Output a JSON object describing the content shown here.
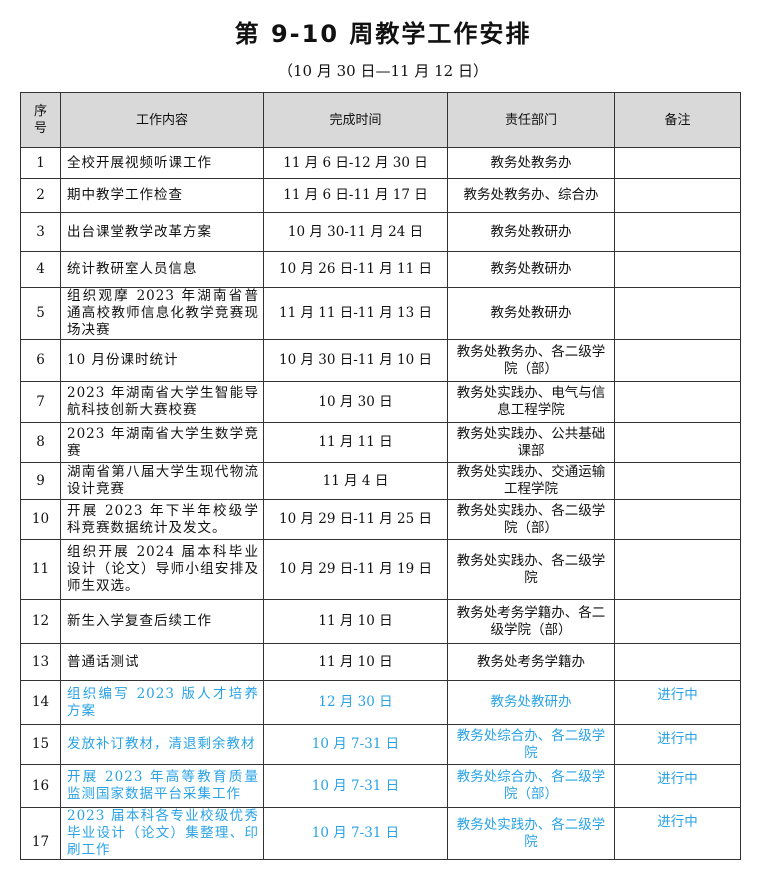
{
  "title": "第 9-10 周教学工作安排",
  "subtitle": "（10 月 30 日—11 月 12 日）",
  "accent_color": "#29a3e6",
  "headers": [
    "序号",
    "工作内容",
    "完成时间",
    "责任部门",
    "备注"
  ],
  "rows": [
    {
      "no": "1",
      "content": "全校开展视频听课工作",
      "time": "11 月 6 日-12 月 30 日",
      "dept": "教务处教务办",
      "note": ""
    },
    {
      "no": "2",
      "content": "期中教学工作检查",
      "time": "11 月 6 日-11 月 17 日",
      "dept": "教务处教务办、综合办",
      "note": ""
    },
    {
      "no": "3",
      "content": "出台课堂教学改革方案",
      "time": "10 月 30-11 月 24 日",
      "dept": "教务处教研办",
      "note": ""
    },
    {
      "no": "4",
      "content": "统计教研室人员信息",
      "time": "10 月 26 日-11 月 11 日",
      "dept": "教务处教研办",
      "note": ""
    },
    {
      "no": "5",
      "content": "组织观摩 2023 年湖南省普通高校教师信息化教学竞赛现场决赛",
      "time": "11 月 11 日-11 月 13 日",
      "dept": "教务处教研办",
      "note": ""
    },
    {
      "no": "6",
      "content": "10 月份课时统计",
      "time": "10 月 30 日-11 月 10 日",
      "dept": "教务处教务办、各二级学院（部）",
      "note": ""
    },
    {
      "no": "7",
      "content": "2023 年湖南省大学生智能导航科技创新大赛校赛",
      "time": "10 月 30 日",
      "dept": "教务处实践办、电气与信息工程学院",
      "note": ""
    },
    {
      "no": "8",
      "content": "2023 年湖南省大学生数学竞赛",
      "time": "11 月 11 日",
      "dept": "教务处实践办、公共基础课部",
      "note": ""
    },
    {
      "no": "9",
      "content": "湖南省第八届大学生现代物流设计竞赛",
      "time": "11 月 4 日",
      "dept": "教务处实践办、交通运输工程学院",
      "note": ""
    },
    {
      "no": "10",
      "content": "开展 2023 年下半年校级学科竞赛数据统计及发文。",
      "time": "10 月 29 日-11 月 25 日",
      "dept": "教务处实践办、各二级学院（部）",
      "note": ""
    },
    {
      "no": "11",
      "content": "组织开展 2024 届本科毕业设计（论文）导师小组安排及师生双选。",
      "time": "10 月 29 日-11 月 19 日",
      "dept": "教务处实践办、各二级学院",
      "note": ""
    },
    {
      "no": "12",
      "content": "新生入学复查后续工作",
      "time": "11 月 10 日",
      "dept": "教务处考务学籍办、各二级学院（部）",
      "note": ""
    },
    {
      "no": "13",
      "content": "普通话测试",
      "time": "11 月 10 日",
      "dept": "教务处考务学籍办",
      "note": ""
    },
    {
      "no": "14",
      "content": "组织编写 2023 版人才培养方案",
      "time": "12 月 30 日",
      "dept": "教务处教研办",
      "note": "进行中"
    },
    {
      "no": "15",
      "content": "发放补订教材，清退剩余教材",
      "time": "10 月 7-31 日",
      "dept": "教务处综合办、各二级学院",
      "note": "进行中"
    },
    {
      "no": "16",
      "content": "开展 2023 年高等教育质量监测国家数据平台采集工作",
      "time": "10 月 7-31 日",
      "dept": "教务处综合办、各二级学院（部）",
      "note": "进行中"
    },
    {
      "no": "17",
      "content": "2023 届本科各专业校级优秀毕业设计（论文）集整理、印刷工作",
      "time": "10 月 7-31 日",
      "dept": "教务处实践办、各二级学院",
      "note": "进行中"
    }
  ]
}
